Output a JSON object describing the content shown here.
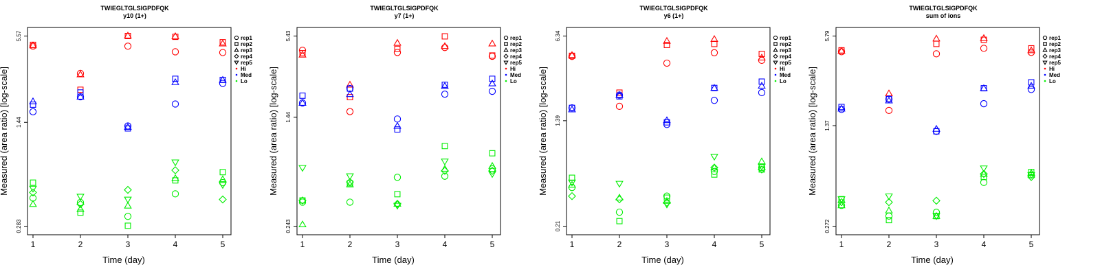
{
  "figure": {
    "peptide": "TWIEGLTGLSIGPDFQK"
  },
  "chart_data": [
    {
      "type": "scatter",
      "title": "TWIEGLTGLSIGPDFQK",
      "subtitle": "y10 (1+)",
      "xlabel": "Time (day)",
      "ylabel": "Measured (area ratio) [log-scale]",
      "x_ticks": [
        "1",
        "2",
        "3",
        "4",
        "5"
      ],
      "y_scale": "log",
      "y_ticks": [
        {
          "value": 0.283,
          "label": "0.283"
        },
        {
          "value": 1.44,
          "label": "1.44"
        },
        {
          "value": 5.57,
          "label": "5.57"
        }
      ],
      "ylim": [
        0.283,
        5.57
      ],
      "series": [
        {
          "group": "Hi",
          "rep": "rep1",
          "values": [
            4.75,
            3.1,
            4.75,
            4.35,
            4.3
          ]
        },
        {
          "group": "Hi",
          "rep": "rep2",
          "values": [
            4.85,
            2.4,
            5.57,
            5.5,
            5.05
          ]
        },
        {
          "group": "Hi",
          "rep": "rep3",
          "values": [
            4.8,
            3.05,
            5.6,
            5.55,
            4.95
          ]
        },
        {
          "group": "Med",
          "rep": "rep1",
          "values": [
            1.7,
            2.15,
            1.36,
            1.92,
            2.65
          ]
        },
        {
          "group": "Med",
          "rep": "rep2",
          "values": [
            1.9,
            2.3,
            1.31,
            2.85,
            2.8
          ]
        },
        {
          "group": "Med",
          "rep": "rep3",
          "values": [
            2.0,
            2.15,
            1.34,
            2.7,
            2.8
          ]
        },
        {
          "group": "Lo",
          "rep": "rep1",
          "values": [
            0.44,
            0.41,
            0.33,
            0.47,
            0.56
          ]
        },
        {
          "group": "Lo",
          "rep": "rep2",
          "values": [
            0.56,
            0.35,
            0.285,
            0.58,
            0.66
          ]
        },
        {
          "group": "Lo",
          "rep": "rep3",
          "values": [
            0.4,
            0.37,
            0.39,
            0.6,
            0.59
          ]
        },
        {
          "group": "Lo",
          "rep": "rep4",
          "values": [
            0.48,
            0.4,
            0.5,
            0.68,
            0.43
          ]
        },
        {
          "group": "Lo",
          "rep": "rep5",
          "values": [
            0.51,
            0.45,
            0.43,
            0.77,
            0.54
          ]
        }
      ],
      "legend": {
        "reps": [
          "rep1",
          "rep2",
          "rep3",
          "rep4",
          "rep5"
        ],
        "groups": [
          "Hi",
          "Med",
          "Lo"
        ],
        "placement": "right"
      }
    },
    {
      "type": "scatter",
      "title": "TWIEGLTGLSIGPDFQK",
      "subtitle": "y7 (1+)",
      "xlabel": "Time (day)",
      "ylabel": "Measured (area ratio) [log-scale]",
      "x_ticks": [
        "1",
        "2",
        "3",
        "4",
        "5"
      ],
      "y_scale": "log",
      "y_ticks": [
        {
          "value": 0.243,
          "label": "0.243"
        },
        {
          "value": 1.44,
          "label": "1.44"
        },
        {
          "value": 5.43,
          "label": "5.43"
        }
      ],
      "ylim": [
        0.243,
        5.43
      ],
      "series": [
        {
          "group": "Hi",
          "rep": "rep1",
          "values": [
            4.3,
            1.58,
            4.15,
            4.5,
            3.9
          ]
        },
        {
          "group": "Hi",
          "rep": "rep2",
          "values": [
            4.1,
            2.0,
            4.4,
            5.4,
            3.95
          ]
        },
        {
          "group": "Hi",
          "rep": "rep3",
          "values": [
            4.0,
            2.45,
            4.85,
            4.6,
            4.8
          ]
        },
        {
          "group": "Med",
          "rep": "rep1",
          "values": [
            1.82,
            2.3,
            1.4,
            2.1,
            2.2
          ]
        },
        {
          "group": "Med",
          "rep": "rep2",
          "values": [
            2.05,
            2.3,
            1.18,
            2.45,
            2.7
          ]
        },
        {
          "group": "Med",
          "rep": "rep3",
          "values": [
            1.82,
            2.1,
            1.25,
            2.4,
            2.5
          ]
        },
        {
          "group": "Lo",
          "rep": "rep1",
          "values": [
            0.36,
            0.36,
            0.54,
            0.55,
            0.62
          ]
        },
        {
          "group": "Lo",
          "rep": "rep2",
          "values": [
            0.37,
            0.49,
            0.41,
            0.9,
            0.8
          ]
        },
        {
          "group": "Lo",
          "rep": "rep3",
          "values": [
            0.25,
            0.48,
            0.35,
            0.62,
            0.65
          ]
        },
        {
          "group": "Lo",
          "rep": "rep4",
          "values": [
            0.37,
            0.5,
            0.35,
            0.6,
            0.6
          ]
        },
        {
          "group": "Lo",
          "rep": "rep5",
          "values": [
            0.63,
            0.55,
            0.34,
            0.7,
            0.57
          ]
        }
      ],
      "legend": {
        "reps": [
          "rep1",
          "rep2",
          "rep3",
          "rep4",
          "rep5"
        ],
        "groups": [
          "Hi",
          "Med",
          "Lo"
        ],
        "placement": "right"
      }
    },
    {
      "type": "scatter",
      "title": "TWIEGLTGLSIGPDFQK",
      "subtitle": "y6 (1+)",
      "xlabel": "Time (day)",
      "ylabel": "Measured (area ratio) [log-scale]",
      "x_ticks": [
        "1",
        "2",
        "3",
        "4",
        "5"
      ],
      "y_scale": "log",
      "y_ticks": [
        {
          "value": 0.21,
          "label": "0.21"
        },
        {
          "value": 1.39,
          "label": "1.39"
        },
        {
          "value": 6.34,
          "label": "6.34"
        }
      ],
      "ylim": [
        0.21,
        6.34
      ],
      "series": [
        {
          "group": "Hi",
          "rep": "rep1",
          "values": [
            4.4,
            1.8,
            3.9,
            4.7,
            4.1
          ]
        },
        {
          "group": "Hi",
          "rep": "rep2",
          "values": [
            4.45,
            2.3,
            5.4,
            5.5,
            4.6
          ]
        },
        {
          "group": "Hi",
          "rep": "rep3",
          "values": [
            4.5,
            2.2,
            5.8,
            6.0,
            4.3
          ]
        },
        {
          "group": "Med",
          "rep": "rep1",
          "values": [
            1.75,
            2.2,
            1.3,
            2.0,
            2.3
          ]
        },
        {
          "group": "Med",
          "rep": "rep2",
          "values": [
            1.75,
            2.15,
            1.35,
            2.5,
            2.8
          ]
        },
        {
          "group": "Med",
          "rep": "rep3",
          "values": [
            1.7,
            2.2,
            1.4,
            2.5,
            2.6
          ]
        },
        {
          "group": "Lo",
          "rep": "rep1",
          "values": [
            0.42,
            0.27,
            0.36,
            0.56,
            0.6
          ]
        },
        {
          "group": "Lo",
          "rep": "rep2",
          "values": [
            0.5,
            0.23,
            0.35,
            0.53,
            0.58
          ]
        },
        {
          "group": "Lo",
          "rep": "rep3",
          "values": [
            0.44,
            0.35,
            0.33,
            0.6,
            0.67
          ]
        },
        {
          "group": "Lo",
          "rep": "rep4",
          "values": [
            0.36,
            0.34,
            0.32,
            0.6,
            0.58
          ]
        },
        {
          "group": "Lo",
          "rep": "rep5",
          "values": [
            0.46,
            0.45,
            0.31,
            0.73,
            0.61
          ]
        }
      ],
      "legend": {
        "reps": [
          "rep1",
          "rep2",
          "rep3",
          "rep4",
          "rep5"
        ],
        "groups": [
          "Hi",
          "Med",
          "Lo"
        ],
        "placement": "right"
      }
    },
    {
      "type": "scatter",
      "title": "TWIEGLTGLSIGPDFQK",
      "subtitle": "sum of ions",
      "xlabel": "Time (day)",
      "ylabel": "Measured (area ratio) [log-scale]",
      "x_ticks": [
        "1",
        "2",
        "3",
        "4",
        "5"
      ],
      "y_scale": "log",
      "y_ticks": [
        {
          "value": 0.272,
          "label": "0.272"
        },
        {
          "value": 1.37,
          "label": "1.37"
        },
        {
          "value": 5.79,
          "label": "5.79"
        }
      ],
      "ylim": [
        0.272,
        5.79
      ],
      "series": [
        {
          "group": "Hi",
          "rep": "rep1",
          "values": [
            4.5,
            1.75,
            4.35,
            4.75,
            4.45
          ]
        },
        {
          "group": "Hi",
          "rep": "rep2",
          "values": [
            4.6,
            2.1,
            5.1,
            5.45,
            4.75
          ]
        },
        {
          "group": "Hi",
          "rep": "rep3",
          "values": [
            4.55,
            2.3,
            5.55,
            5.6,
            4.6
          ]
        },
        {
          "group": "Med",
          "rep": "rep1",
          "values": [
            1.78,
            2.1,
            1.25,
            1.95,
            2.45
          ]
        },
        {
          "group": "Med",
          "rep": "rep2",
          "values": [
            1.85,
            2.1,
            1.25,
            2.5,
            2.75
          ]
        },
        {
          "group": "Med",
          "rep": "rep3",
          "values": [
            1.8,
            2.05,
            1.3,
            2.5,
            2.6
          ]
        },
        {
          "group": "Lo",
          "rep": "rep1",
          "values": [
            0.38,
            0.32,
            0.34,
            0.55,
            0.62
          ]
        },
        {
          "group": "Lo",
          "rep": "rep2",
          "values": [
            0.42,
            0.3,
            0.32,
            0.6,
            0.65
          ]
        },
        {
          "group": "Lo",
          "rep": "rep3",
          "values": [
            0.38,
            0.35,
            0.32,
            0.63,
            0.64
          ]
        },
        {
          "group": "Lo",
          "rep": "rep4",
          "values": [
            0.4,
            0.4,
            0.41,
            0.63,
            0.6
          ]
        },
        {
          "group": "Lo",
          "rep": "rep5",
          "values": [
            0.42,
            0.44,
            0.32,
            0.69,
            0.62
          ]
        }
      ],
      "legend": {
        "reps": [
          "rep1",
          "rep2",
          "rep3",
          "rep4",
          "rep5"
        ],
        "groups": [
          "Hi",
          "Med",
          "Lo"
        ],
        "placement": "right"
      }
    }
  ],
  "colors": {
    "Hi": "#ff0000",
    "Med": "#0000ff",
    "Lo": "#00ee00"
  },
  "rep_shapes": {
    "rep1": "circle",
    "rep2": "square",
    "rep3": "triangle-up",
    "rep4": "diamond",
    "rep5": "triangle-down"
  }
}
